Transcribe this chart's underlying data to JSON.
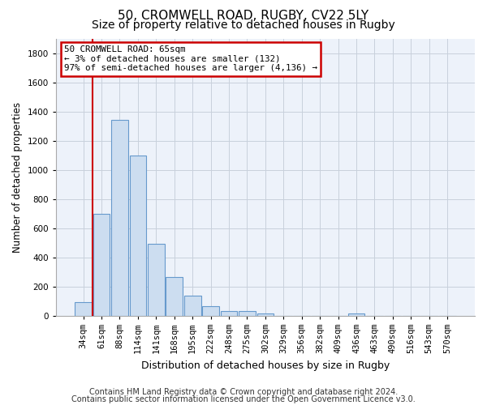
{
  "title1": "50, CROMWELL ROAD, RUGBY, CV22 5LY",
  "title2": "Size of property relative to detached houses in Rugby",
  "xlabel": "Distribution of detached houses by size in Rugby",
  "ylabel": "Number of detached properties",
  "categories": [
    "34sqm",
    "61sqm",
    "88sqm",
    "114sqm",
    "141sqm",
    "168sqm",
    "195sqm",
    "222sqm",
    "248sqm",
    "275sqm",
    "302sqm",
    "329sqm",
    "356sqm",
    "382sqm",
    "409sqm",
    "436sqm",
    "463sqm",
    "490sqm",
    "516sqm",
    "543sqm",
    "570sqm"
  ],
  "values": [
    95,
    700,
    1340,
    1095,
    490,
    265,
    135,
    65,
    33,
    33,
    15,
    0,
    0,
    0,
    0,
    15,
    0,
    0,
    0,
    0,
    0
  ],
  "bar_color": "#ccddf0",
  "bar_edge_color": "#6699cc",
  "vline_color": "#cc0000",
  "annotation_line1": "50 CROMWELL ROAD: 65sqm",
  "annotation_line2": "← 3% of detached houses are smaller (132)",
  "annotation_line3": "97% of semi-detached houses are larger (4,136) →",
  "annotation_box_color": "#cc0000",
  "ylim": [
    0,
    1900
  ],
  "yticks": [
    0,
    200,
    400,
    600,
    800,
    1000,
    1200,
    1400,
    1600,
    1800
  ],
  "footer1": "Contains HM Land Registry data © Crown copyright and database right 2024.",
  "footer2": "Contains public sector information licensed under the Open Government Licence v3.0.",
  "bg_color": "#edf2fa",
  "grid_color": "#c8d0dc",
  "title1_fontsize": 11,
  "title2_fontsize": 10,
  "xlabel_fontsize": 9,
  "ylabel_fontsize": 8.5,
  "tick_fontsize": 7.5,
  "footer_fontsize": 7
}
